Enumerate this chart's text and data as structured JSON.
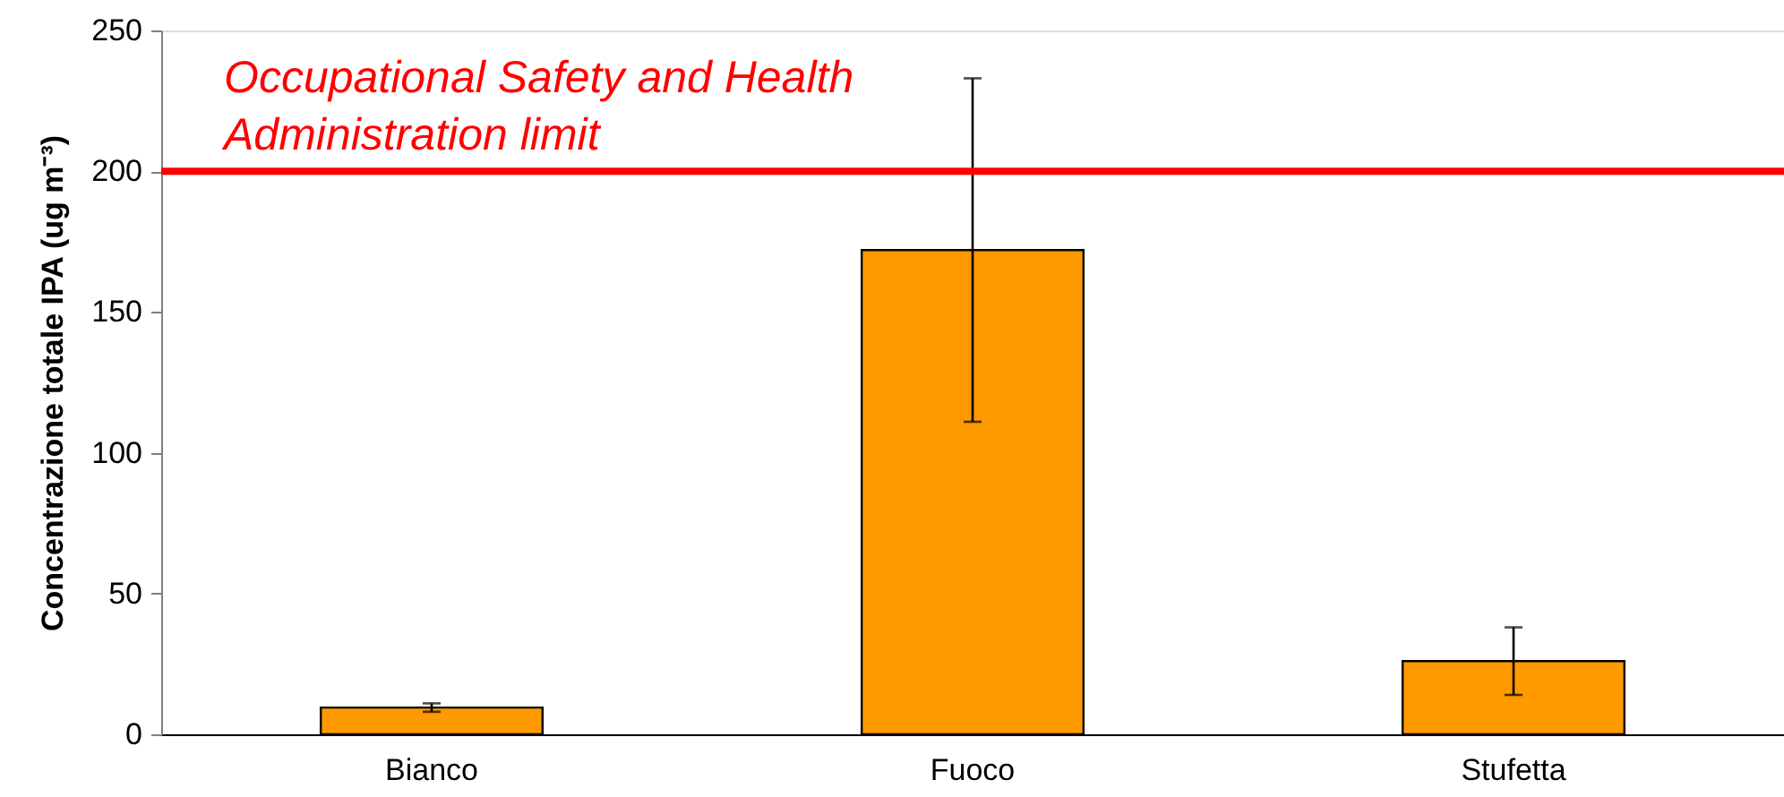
{
  "chart_data": {
    "type": "bar",
    "ylabel": "Concentrazione totale IPA (ug m⁻³)",
    "categories": [
      "Bianco",
      "Fuoco",
      "Stufetta"
    ],
    "values": [
      9.5,
      172,
      26
    ],
    "errors": [
      1.5,
      61,
      12
    ],
    "color": "#ff9900",
    "ylim": [
      0,
      250
    ],
    "yticks": [
      0,
      50,
      100,
      150,
      200,
      250
    ],
    "ref_lines": [
      {
        "axis": "y",
        "value": 200,
        "label": "Occupational Safety and Health\nAdministration limit",
        "color": "#ff0000"
      }
    ]
  }
}
